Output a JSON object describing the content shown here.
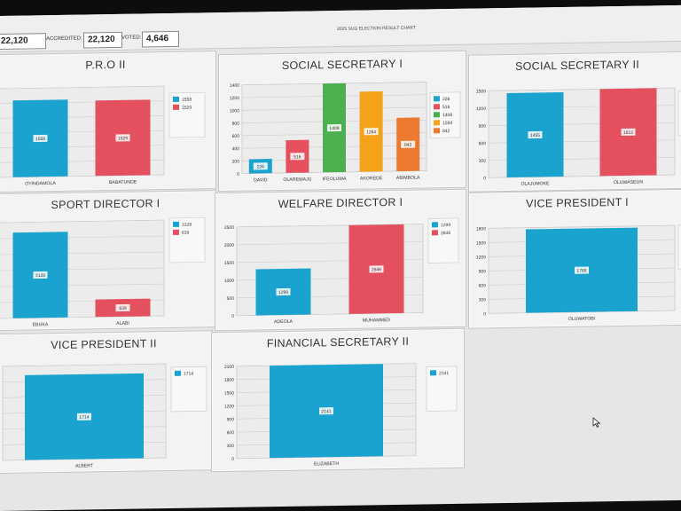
{
  "header": {
    "registered_value": "22,120",
    "accredited_label": "ACCREDITED:",
    "accredited_value": "22,120",
    "voted_label": "VOTED:",
    "voted_value": "4,646",
    "title": "2025 SUG ELECTION RESULT CHART"
  },
  "colors": {
    "blue": "#1ba3cf",
    "red": "#e5505f",
    "green": "#4caf50",
    "amber": "#f3a21a",
    "orange": "#ec7a2e",
    "panel": "#f3f3f3",
    "grid": "#c8c8c8"
  },
  "panels": [
    {
      "title": "P.R.O II"
    },
    {
      "title": "SOCIAL SECRETARY I"
    },
    {
      "title": "SOCIAL SECRETARY II"
    },
    {
      "title": "SPORT DIRECTOR I"
    },
    {
      "title": "WELFARE DIRECTOR I"
    },
    {
      "title": "VICE PRESIDENT I"
    },
    {
      "title": "VICE PRESIDENT II"
    },
    {
      "title": "FINANCIAL SECRETARY II"
    }
  ],
  "chart_data": [
    {
      "type": "bar",
      "title": "P.R.O II",
      "categories": [
        "OYINDAMOLA",
        "BABATUNDE"
      ],
      "values": [
        1558,
        1529
      ],
      "legend": [
        "1558",
        "1529"
      ],
      "colors": [
        "#1ba3cf",
        "#e5505f"
      ],
      "ylim": [
        0,
        1800
      ],
      "yticks": [],
      "legend_position": "right"
    },
    {
      "type": "bar",
      "title": "SOCIAL SECRETARY I",
      "categories": [
        "DAVID",
        "OLAREWAJU",
        "IFEOLUWA",
        "AKOREDE",
        "ABIMBOLA"
      ],
      "values": [
        226,
        516,
        1408,
        1264,
        842
      ],
      "legend": [
        "226",
        "516",
        "1408",
        "1264",
        "842"
      ],
      "colors": [
        "#1ba3cf",
        "#e5505f",
        "#4caf50",
        "#f3a21a",
        "#ec7a2e"
      ],
      "ylim": [
        0,
        1400
      ],
      "yticks": [
        "0",
        "200",
        "400",
        "600",
        "800",
        "1000",
        "1200",
        "1400"
      ],
      "legend_position": "right"
    },
    {
      "type": "bar",
      "title": "SOCIAL SECRETARY II",
      "categories": [
        "OLAJUMOKE",
        "OLUWASEUN"
      ],
      "values": [
        1455,
        1612
      ],
      "legend": [],
      "colors": [
        "#1ba3cf",
        "#e5505f"
      ],
      "ylim": [
        0,
        1500
      ],
      "yticks": [
        "0",
        "300",
        "600",
        "900",
        "1200",
        "1500"
      ],
      "legend_position": "right"
    },
    {
      "type": "bar",
      "title": "SPORT DIRECTOR I",
      "categories": [
        "EBUKA",
        "ALABI"
      ],
      "values": [
        3128,
        639
      ],
      "legend": [
        "3128",
        "639"
      ],
      "colors": [
        "#1ba3cf",
        "#e5505f"
      ],
      "ylim": [
        0,
        3500
      ],
      "yticks": [],
      "legend_position": "right"
    },
    {
      "type": "bar",
      "title": "WELFARE DIRECTOR I",
      "categories": [
        "ADEOLA",
        "MUHAMMED"
      ],
      "values": [
        1299,
        2646
      ],
      "legend": [
        "1299",
        "2646"
      ],
      "colors": [
        "#1ba3cf",
        "#e5505f"
      ],
      "ylim": [
        0,
        2500
      ],
      "yticks": [
        "0",
        "500",
        "1000",
        "1500",
        "2000",
        "2500"
      ],
      "legend_position": "right"
    },
    {
      "type": "bar",
      "title": "VICE PRESIDENT I",
      "categories": [
        "OLUWATOBI"
      ],
      "values": [
        1765
      ],
      "legend": [],
      "colors": [
        "#1ba3cf"
      ],
      "ylim": [
        0,
        1800
      ],
      "yticks": [
        "0",
        "300",
        "600",
        "900",
        "1200",
        "1500",
        "1800"
      ],
      "legend_position": "right"
    },
    {
      "type": "bar",
      "title": "VICE PRESIDENT II",
      "categories": [
        "ALBERT"
      ],
      "values": [
        1714
      ],
      "legend": [
        "1714"
      ],
      "colors": [
        "#1ba3cf"
      ],
      "ylim": [
        0,
        1900
      ],
      "yticks": [],
      "legend_position": "right"
    },
    {
      "type": "bar",
      "title": "FINANCIAL SECRETARY II",
      "categories": [
        "ELIZABETH"
      ],
      "values": [
        2141
      ],
      "legend": [
        "2141"
      ],
      "colors": [
        "#1ba3cf"
      ],
      "ylim": [
        0,
        2100
      ],
      "yticks": [
        "0",
        "300",
        "600",
        "900",
        "1200",
        "1500",
        "1800",
        "2100"
      ],
      "legend_position": "right"
    }
  ]
}
